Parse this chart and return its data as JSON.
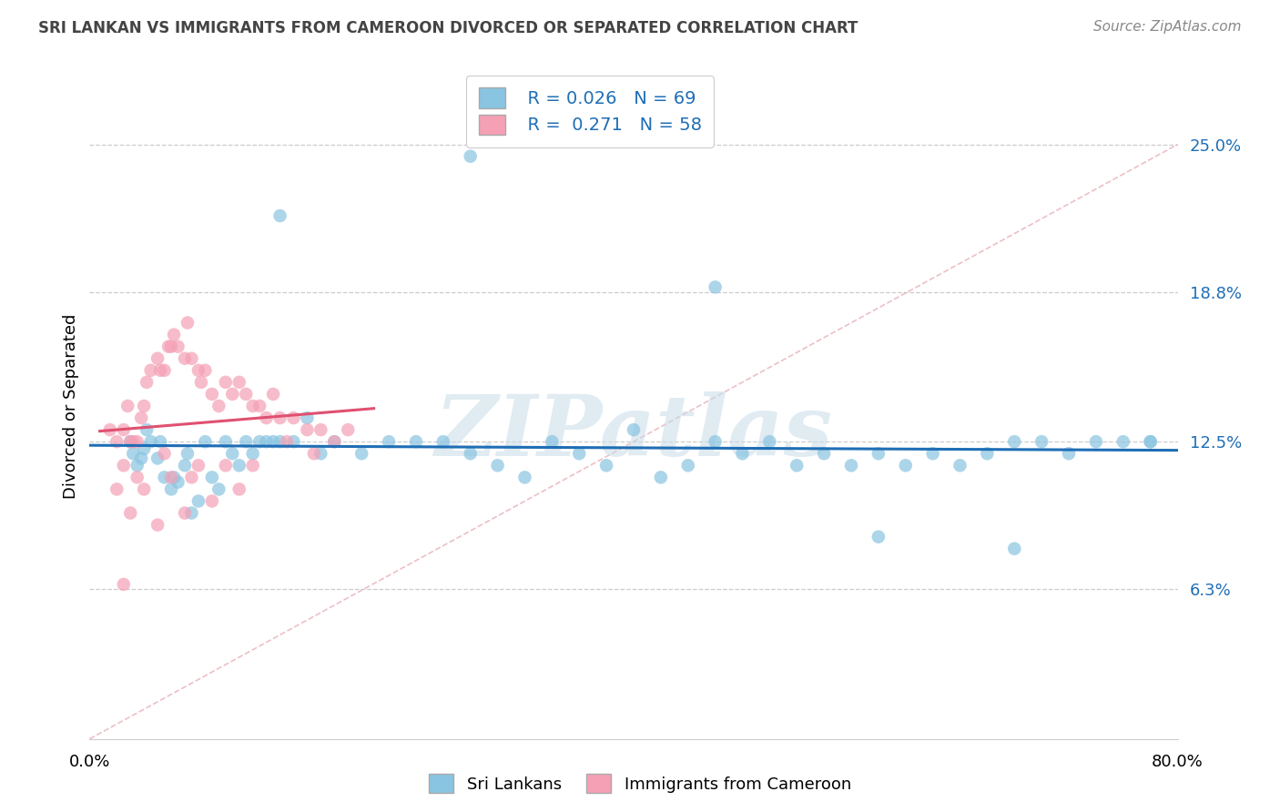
{
  "title": "SRI LANKAN VS IMMIGRANTS FROM CAMEROON DIVORCED OR SEPARATED CORRELATION CHART",
  "source": "Source: ZipAtlas.com",
  "ylabel": "Divorced or Separated",
  "watermark": "ZIPatlas",
  "legend_r1": "R = 0.026",
  "legend_n1": "N = 69",
  "legend_r2": "R =  0.271",
  "legend_n2": "N = 58",
  "legend_label1": "Sri Lankans",
  "legend_label2": "Immigrants from Cameroon",
  "ytick_labels": [
    "6.3%",
    "12.5%",
    "18.8%",
    "25.0%"
  ],
  "ytick_values": [
    6.3,
    12.5,
    18.8,
    25.0
  ],
  "xlim": [
    0,
    80
  ],
  "ylim": [
    0,
    28
  ],
  "blue_color": "#89c4e1",
  "blue_line_color": "#1f6eb5",
  "pink_color": "#f5a0b5",
  "pink_line_color": "#e05070",
  "dash_line_color": "#e8b0b8",
  "blue_scatter_x": [
    3.0,
    3.2,
    3.5,
    3.8,
    4.0,
    4.2,
    4.5,
    5.0,
    5.2,
    5.5,
    6.0,
    6.2,
    6.5,
    7.0,
    7.2,
    7.5,
    8.0,
    8.5,
    9.0,
    9.5,
    10.0,
    10.5,
    11.0,
    11.5,
    12.0,
    12.5,
    13.0,
    13.5,
    14.0,
    15.0,
    16.0,
    17.0,
    18.0,
    20.0,
    22.0,
    24.0,
    26.0,
    28.0,
    30.0,
    32.0,
    34.0,
    36.0,
    38.0,
    40.0,
    42.0,
    44.0,
    46.0,
    48.0,
    50.0,
    52.0,
    54.0,
    56.0,
    58.0,
    60.0,
    62.0,
    64.0,
    66.0,
    68.0,
    70.0,
    72.0,
    74.0,
    76.0,
    78.0,
    14.0,
    28.0,
    46.0,
    58.0,
    68.0,
    78.0
  ],
  "blue_scatter_y": [
    12.5,
    12.0,
    11.5,
    11.8,
    12.2,
    13.0,
    12.5,
    11.8,
    12.5,
    11.0,
    10.5,
    11.0,
    10.8,
    11.5,
    12.0,
    9.5,
    10.0,
    12.5,
    11.0,
    10.5,
    12.5,
    12.0,
    11.5,
    12.5,
    12.0,
    12.5,
    12.5,
    12.5,
    12.5,
    12.5,
    13.5,
    12.0,
    12.5,
    12.0,
    12.5,
    12.5,
    12.5,
    12.0,
    11.5,
    11.0,
    12.5,
    12.0,
    11.5,
    13.0,
    11.0,
    11.5,
    12.5,
    12.0,
    12.5,
    11.5,
    12.0,
    11.5,
    12.0,
    11.5,
    12.0,
    11.5,
    12.0,
    12.5,
    12.5,
    12.0,
    12.5,
    12.5,
    12.5,
    22.0,
    24.5,
    19.0,
    8.5,
    8.0,
    12.5
  ],
  "pink_scatter_x": [
    1.5,
    2.0,
    2.5,
    2.8,
    3.0,
    3.2,
    3.5,
    3.8,
    4.0,
    4.2,
    4.5,
    5.0,
    5.2,
    5.5,
    5.8,
    6.0,
    6.2,
    6.5,
    7.0,
    7.2,
    7.5,
    8.0,
    8.2,
    8.5,
    9.0,
    9.5,
    10.0,
    10.5,
    11.0,
    11.5,
    12.0,
    12.5,
    13.0,
    13.5,
    14.0,
    15.0,
    16.0,
    17.0,
    18.0,
    19.0,
    2.5,
    3.5,
    5.5,
    7.5,
    10.0,
    12.0,
    14.5,
    16.5,
    2.0,
    4.0,
    6.0,
    8.0,
    3.0,
    5.0,
    7.0,
    9.0,
    11.0,
    2.5
  ],
  "pink_scatter_y": [
    13.0,
    12.5,
    13.0,
    14.0,
    12.5,
    12.5,
    12.5,
    13.5,
    14.0,
    15.0,
    15.5,
    16.0,
    15.5,
    15.5,
    16.5,
    16.5,
    17.0,
    16.5,
    16.0,
    17.5,
    16.0,
    15.5,
    15.0,
    15.5,
    14.5,
    14.0,
    15.0,
    14.5,
    15.0,
    14.5,
    14.0,
    14.0,
    13.5,
    14.5,
    13.5,
    13.5,
    13.0,
    13.0,
    12.5,
    13.0,
    11.5,
    11.0,
    12.0,
    11.0,
    11.5,
    11.5,
    12.5,
    12.0,
    10.5,
    10.5,
    11.0,
    11.5,
    9.5,
    9.0,
    9.5,
    10.0,
    10.5,
    6.5
  ]
}
